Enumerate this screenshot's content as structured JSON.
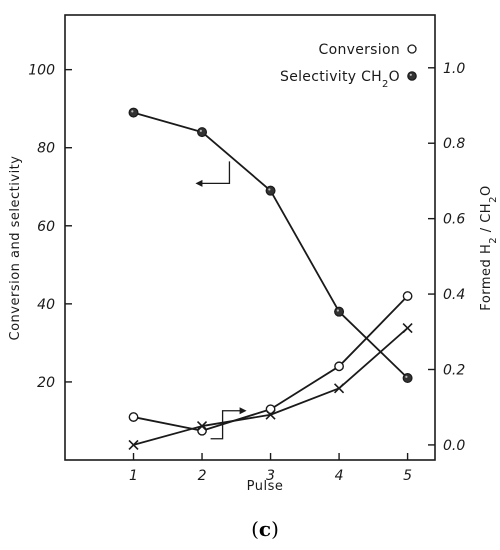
{
  "panel_label": {
    "open": "(",
    "letter": "c",
    "close": ")"
  },
  "chart_data": {
    "type": "line",
    "xlabel": "Pulse",
    "ylabel_left": "Conversion and selectivity",
    "ylabel_right_parts": [
      "Formed H",
      "2",
      " / CH",
      "2",
      "O"
    ],
    "x": [
      1,
      2,
      3,
      4,
      5
    ],
    "xticks": [
      "1",
      "2",
      "3",
      "4",
      "5"
    ],
    "xlim": [
      0,
      5.4
    ],
    "ylim_left": [
      0,
      114
    ],
    "ylim_right": [
      -0.04,
      1.14
    ],
    "yticks_left": [
      "20",
      "40",
      "60",
      "80",
      "100"
    ],
    "yticks_left_values": [
      20,
      40,
      60,
      80,
      100
    ],
    "yticks_right": [
      "0.0",
      "0.2",
      "0.4",
      "0.6",
      "0.8",
      "1.0"
    ],
    "yticks_right_values": [
      0,
      0.2,
      0.4,
      0.6,
      0.8,
      1.0
    ],
    "legend": {
      "placement": "top-right",
      "conversion_label": "Conversion",
      "selectivity_label": "Selectivity CH",
      "selectivity_sub": "2",
      "selectivity_suffix": "O"
    },
    "series": [
      {
        "name": "Conversion",
        "axis": "left",
        "marker": "open-circle",
        "values": [
          11,
          7.5,
          13,
          24,
          42
        ]
      },
      {
        "name": "Selectivity CH2O",
        "axis": "left",
        "marker": "filled-circle",
        "values": [
          89,
          84,
          69,
          38,
          21
        ]
      },
      {
        "axis": "right",
        "marker": "cross",
        "values": [
          0.0,
          0.05,
          0.08,
          0.15,
          0.31
        ]
      }
    ],
    "annotations": [
      {
        "kind": "arrow-to-left-axis",
        "near_series": "Selectivity CH2O",
        "x": 2.4
      },
      {
        "kind": "arrow-to-right-axis",
        "near_series": "Conversion",
        "x": 2.3
      }
    ]
  }
}
